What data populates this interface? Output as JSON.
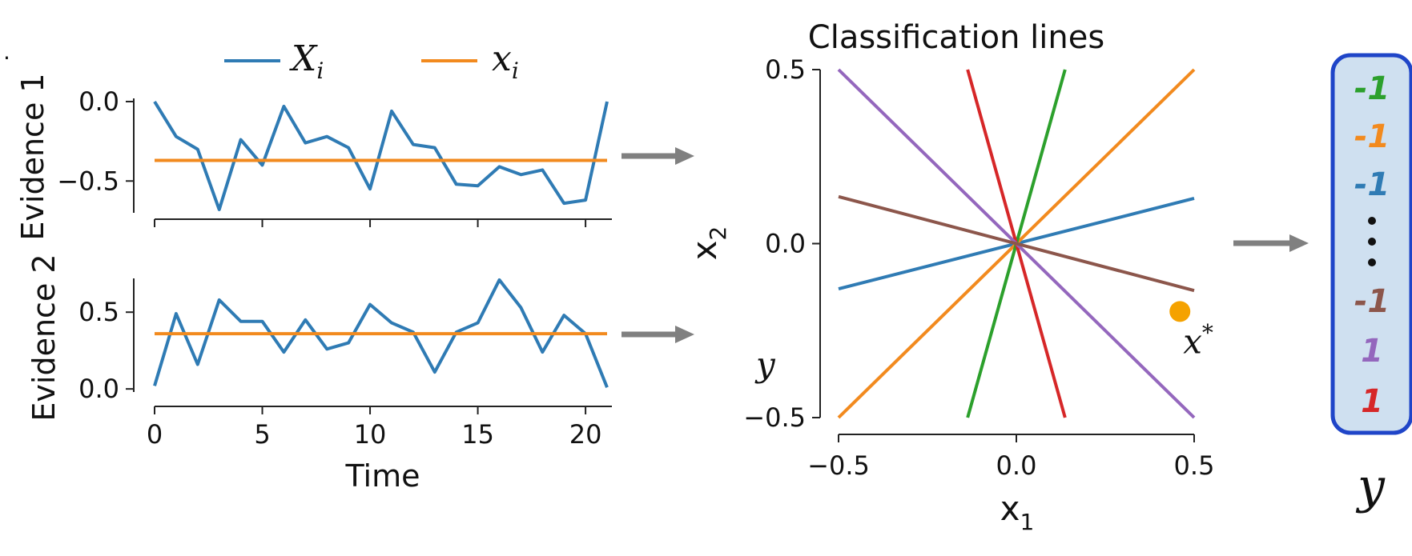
{
  "stray_mark": ".",
  "legend": {
    "series_x_big": "X",
    "series_x_big_sub": "i",
    "series_x_small": "x",
    "series_x_small_sub": "i"
  },
  "colors": {
    "blue": "#2f7bb4",
    "orange": "#f28a1e",
    "green": "#2ca02c",
    "red": "#d62728",
    "purple": "#9467bd",
    "brown": "#8c564b",
    "point": "#f5a200",
    "arrow": "#808080",
    "box_fill": "#cfe0f0",
    "box_border": "#1f45c8"
  },
  "chart_data": [
    {
      "type": "line",
      "ylabel": "Evidence 1",
      "xlim": [
        -0.5,
        22
      ],
      "ylim": [
        -0.7,
        0.02
      ],
      "yticks": [
        {
          "value": 0.0,
          "label": "0.0"
        },
        {
          "value": -0.5,
          "label": "−0.5"
        }
      ],
      "xticks": [
        0,
        5,
        10,
        15,
        20
      ],
      "series": [
        {
          "values": [
            0.0,
            -0.22,
            -0.3,
            -0.68,
            -0.24,
            -0.4,
            -0.03,
            -0.26,
            -0.22,
            -0.29,
            -0.55,
            -0.06,
            -0.27,
            -0.29,
            -0.52,
            -0.53,
            -0.41,
            -0.46,
            -0.43,
            -0.64,
            -0.62,
            0.0
          ],
          "color": "blue"
        },
        {
          "values": [
            -0.37,
            -0.37
          ],
          "x": [
            0,
            21
          ],
          "color": "orange"
        }
      ]
    },
    {
      "type": "line",
      "ylabel": "Evidence 2",
      "xlabel": "Time",
      "xlim": [
        -0.5,
        22
      ],
      "ylim": [
        -0.02,
        0.72
      ],
      "yticks": [
        {
          "value": 0.5,
          "label": "0.5"
        },
        {
          "value": 0.0,
          "label": "0.0"
        }
      ],
      "xticks": [
        {
          "value": 0,
          "label": "0"
        },
        {
          "value": 5,
          "label": "5"
        },
        {
          "value": 10,
          "label": "10"
        },
        {
          "value": 15,
          "label": "15"
        },
        {
          "value": 20,
          "label": "20"
        }
      ],
      "series": [
        {
          "values": [
            0.02,
            0.49,
            0.16,
            0.58,
            0.44,
            0.44,
            0.24,
            0.45,
            0.26,
            0.3,
            0.55,
            0.43,
            0.37,
            0.11,
            0.37,
            0.43,
            0.71,
            0.53,
            0.24,
            0.48,
            0.36,
            0.01
          ],
          "color": "blue"
        },
        {
          "values": [
            0.36,
            0.36
          ],
          "x": [
            0,
            21
          ],
          "color": "orange"
        }
      ]
    },
    {
      "type": "line",
      "title": "Classification lines",
      "xlabel": "x",
      "xlabel_sub": "1",
      "ylabel": "x",
      "ylabel_sub": "2",
      "xlim": [
        -0.5,
        0.5
      ],
      "ylim": [
        -0.5,
        0.5
      ],
      "xticks": [
        {
          "value": -0.5,
          "label": "−0.5"
        },
        {
          "value": 0.0,
          "label": "0.0"
        },
        {
          "value": 0.5,
          "label": "0.5"
        }
      ],
      "yticks": [
        {
          "value": 0.5,
          "label": "0.5"
        },
        {
          "value": 0.0,
          "label": "0.0"
        },
        {
          "value": -0.5,
          "label": "−0.5"
        }
      ],
      "series": [
        {
          "x": [
            -0.5,
            0.5
          ],
          "y": [
            -0.13,
            0.13
          ],
          "color": "blue"
        },
        {
          "x": [
            -0.5,
            0.5
          ],
          "y": [
            -0.5,
            0.5
          ],
          "color": "orange"
        },
        {
          "x": [
            -0.137,
            0.137
          ],
          "y": [
            -0.5,
            0.5
          ],
          "color": "green"
        },
        {
          "x": [
            -0.137,
            0.137
          ],
          "y": [
            0.5,
            -0.5
          ],
          "color": "red"
        },
        {
          "x": [
            -0.5,
            0.5
          ],
          "y": [
            0.5,
            -0.5
          ],
          "color": "purple"
        },
        {
          "x": [
            -0.5,
            0.5
          ],
          "y": [
            0.135,
            -0.135
          ],
          "color": "brown"
        }
      ],
      "point": {
        "x": 0.46,
        "y": -0.195,
        "label": "x",
        "label_sup": "*",
        "color": "point"
      },
      "annotation": "y"
    }
  ],
  "output_vector": {
    "items": [
      {
        "text": "-1",
        "color": "green"
      },
      {
        "text": "-1",
        "color": "orange"
      },
      {
        "text": "-1",
        "color": "blue"
      },
      {
        "text": "-1",
        "color": "brown"
      },
      {
        "text": "1",
        "color": "purple"
      },
      {
        "text": "1",
        "color": "red"
      }
    ],
    "label": "y"
  }
}
